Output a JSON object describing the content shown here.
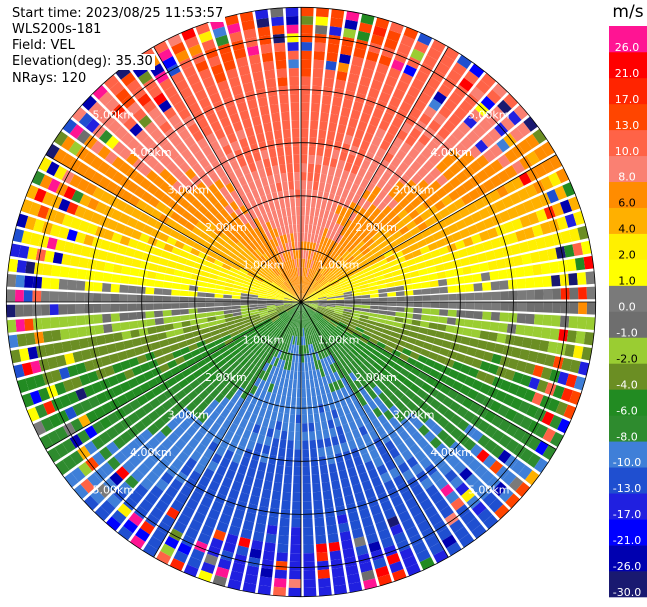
{
  "header": {
    "start_time": "Start time: 2023/08/25 11:53:57",
    "instrument": "WLS200s-181",
    "field": "Field: VEL",
    "elevation": "Elevation(deg): 35.30",
    "nrays": "NRays: 120"
  },
  "chart_data": {
    "type": "ppi",
    "field": "VEL",
    "units": "m/s",
    "nrays": 120,
    "range_rings_km": [
      1,
      2,
      3,
      4,
      5
    ],
    "range_ring_labels": [
      "1.00km",
      "2.00km",
      "3.00km",
      "4.00km",
      "5.00km"
    ],
    "max_range_km": 5.55,
    "colorbar": {
      "label": "m/s",
      "levels": [
        -30,
        -26,
        -21,
        -17,
        -13,
        -10,
        -8,
        -6,
        -4,
        -2,
        -1,
        0,
        1,
        2,
        4,
        6,
        8,
        10,
        13,
        17,
        21,
        26,
        30
      ],
      "tick_labels": [
        "-30.0",
        "-26.0",
        "-21.0",
        "-17.0",
        "-13.0",
        "-10.0",
        "-8.0",
        "-6.0",
        "-4.0",
        "-2.0",
        "-1.0",
        "0.0",
        "1.0",
        "2.0",
        "4.0",
        "6.0",
        "8.0",
        "10.0",
        "13.0",
        "17.0",
        "21.0",
        "26.0"
      ],
      "colors": [
        "#191970",
        "#0000b0",
        "#0000ff",
        "#2020e0",
        "#1f4fd0",
        "#3f7fd8",
        "#2e8b2e",
        "#228b22",
        "#6b8e23",
        "#9acd32",
        "#6e6e6e",
        "#7a7a7a",
        "#ffff00",
        "#fff000",
        "#ffb000",
        "#ff8c00",
        "#fa8072",
        "#ff6347",
        "#ff4500",
        "#ff2400",
        "#ff0000",
        "#ff1493"
      ]
    },
    "field_model": "mostly uniform radial velocity pattern: approaching (blue/green) to the south, receding (orange/red) to the north, near-zero (grey) along east-west axis, noisy speckle in the outer range gates"
  }
}
